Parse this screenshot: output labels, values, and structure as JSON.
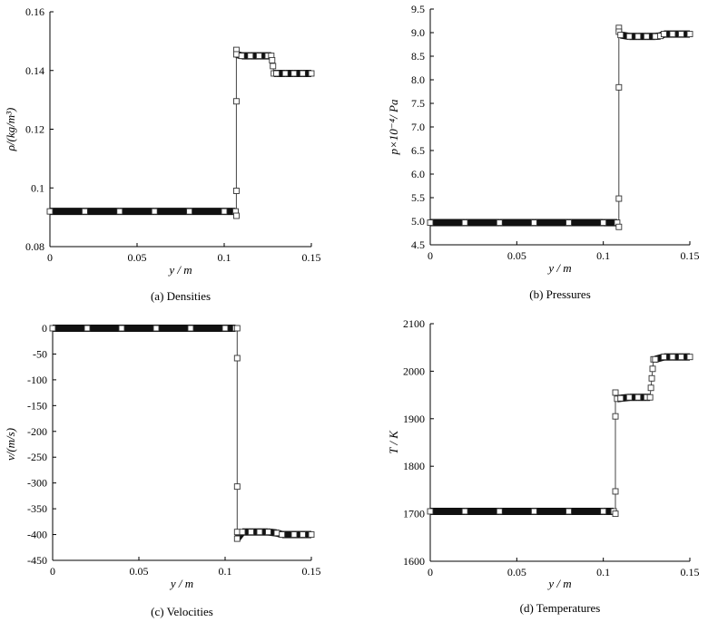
{
  "chart_data": [
    {
      "type": "scatter",
      "caption": "(a)  Densities",
      "xlabel": "y / m",
      "ylabel": "ρ/(kg/m³)",
      "xlim": [
        0,
        0.15
      ],
      "ylim": [
        0.08,
        0.16
      ],
      "xticks": [
        "0",
        "0.05",
        "0.1",
        "0.15"
      ],
      "yticks": [
        "0.08",
        "0.1",
        "0.12",
        "0.14",
        "0.16"
      ],
      "series": [
        {
          "points": [
            [
              0,
              0.092
            ],
            [
              0.02,
              0.092
            ],
            [
              0.04,
              0.092
            ],
            [
              0.06,
              0.092
            ],
            [
              0.08,
              0.092
            ],
            [
              0.1,
              0.092
            ],
            [
              0.1065,
              0.092
            ],
            [
              0.107,
              0.0905
            ],
            [
              0.107,
              0.099
            ],
            [
              0.107,
              0.1295
            ],
            [
              0.107,
              0.147
            ],
            [
              0.107,
              0.1455
            ],
            [
              0.11,
              0.145
            ],
            [
              0.115,
              0.145
            ],
            [
              0.12,
              0.145
            ],
            [
              0.125,
              0.145
            ],
            [
              0.127,
              0.145
            ],
            [
              0.1275,
              0.1435
            ],
            [
              0.128,
              0.1415
            ],
            [
              0.1285,
              0.139
            ],
            [
              0.13,
              0.139
            ],
            [
              0.135,
              0.139
            ],
            [
              0.14,
              0.139
            ],
            [
              0.145,
              0.139
            ],
            [
              0.15,
              0.139
            ]
          ]
        }
      ]
    },
    {
      "type": "scatter",
      "caption": "(b)  Pressures",
      "xlabel": "y / m",
      "ylabel": "p×10⁻⁴/ Pa",
      "xlim": [
        0,
        0.15
      ],
      "ylim": [
        4.5,
        9.5
      ],
      "xticks": [
        "0",
        "0.05",
        "0.1",
        "0.15"
      ],
      "yticks": [
        "4.5",
        "5.0",
        "5.5",
        "6.0",
        "6.5",
        "7.0",
        "7.5",
        "8.0",
        "8.5",
        "9.0",
        "9.5"
      ],
      "series": [
        {
          "points": [
            [
              0,
              4.97
            ],
            [
              0.02,
              4.97
            ],
            [
              0.04,
              4.97
            ],
            [
              0.06,
              4.97
            ],
            [
              0.08,
              4.97
            ],
            [
              0.1,
              4.97
            ],
            [
              0.108,
              4.97
            ],
            [
              0.109,
              4.88
            ],
            [
              0.109,
              5.48
            ],
            [
              0.109,
              7.84
            ],
            [
              0.109,
              9.1
            ],
            [
              0.109,
              9.02
            ],
            [
              0.11,
              8.95
            ],
            [
              0.115,
              8.92
            ],
            [
              0.12,
              8.92
            ],
            [
              0.125,
              8.92
            ],
            [
              0.13,
              8.92
            ],
            [
              0.133,
              8.93
            ],
            [
              0.135,
              8.97
            ],
            [
              0.14,
              8.97
            ],
            [
              0.145,
              8.97
            ],
            [
              0.15,
              8.97
            ]
          ]
        }
      ]
    },
    {
      "type": "scatter",
      "caption": "(c)  Velocities",
      "xlabel": "y / m",
      "ylabel": "v/(m/s)",
      "xlim": [
        0,
        0.15
      ],
      "ylim": [
        -450,
        0
      ],
      "xticks": [
        "0",
        "0.05",
        "0.1",
        "0.15"
      ],
      "yticks": [
        "-450",
        "-400",
        "-350",
        "-300",
        "-250",
        "-200",
        "-150",
        "-100",
        "-50",
        "0"
      ],
      "series": [
        {
          "points": [
            [
              0,
              0
            ],
            [
              0.02,
              0
            ],
            [
              0.04,
              0
            ],
            [
              0.06,
              0
            ],
            [
              0.08,
              0
            ],
            [
              0.1,
              0
            ],
            [
              0.106,
              0
            ],
            [
              0.107,
              0
            ],
            [
              0.107,
              -58
            ],
            [
              0.107,
              -307
            ],
            [
              0.107,
              -395
            ],
            [
              0.107,
              -408
            ],
            [
              0.11,
              -395
            ],
            [
              0.115,
              -395
            ],
            [
              0.12,
              -395
            ],
            [
              0.125,
              -395
            ],
            [
              0.13,
              -397
            ],
            [
              0.133,
              -400
            ],
            [
              0.14,
              -400
            ],
            [
              0.145,
              -400
            ],
            [
              0.15,
              -400
            ]
          ]
        }
      ]
    },
    {
      "type": "scatter",
      "caption": "(d)  Temperatures",
      "xlabel": "y / m",
      "ylabel": "T / K",
      "xlim": [
        0,
        0.15
      ],
      "ylim": [
        1600,
        2100
      ],
      "xticks": [
        "0",
        "0.05",
        "0.1",
        "0.15"
      ],
      "yticks": [
        "1600",
        "1700",
        "1800",
        "1900",
        "2000",
        "2100"
      ],
      "series": [
        {
          "points": [
            [
              0,
              1705
            ],
            [
              0.02,
              1705
            ],
            [
              0.04,
              1705
            ],
            [
              0.06,
              1705
            ],
            [
              0.08,
              1705
            ],
            [
              0.1,
              1705
            ],
            [
              0.106,
              1705
            ],
            [
              0.107,
              1700
            ],
            [
              0.107,
              1747
            ],
            [
              0.107,
              1905
            ],
            [
              0.107,
              1955
            ],
            [
              0.108,
              1942
            ],
            [
              0.11,
              1943
            ],
            [
              0.115,
              1945
            ],
            [
              0.12,
              1945
            ],
            [
              0.125,
              1945
            ],
            [
              0.127,
              1945
            ],
            [
              0.1275,
              1965
            ],
            [
              0.128,
              1985
            ],
            [
              0.1285,
              2005
            ],
            [
              0.129,
              2025
            ],
            [
              0.13,
              2025
            ],
            [
              0.135,
              2030
            ],
            [
              0.14,
              2030
            ],
            [
              0.145,
              2030
            ],
            [
              0.15,
              2030
            ]
          ]
        }
      ]
    }
  ]
}
